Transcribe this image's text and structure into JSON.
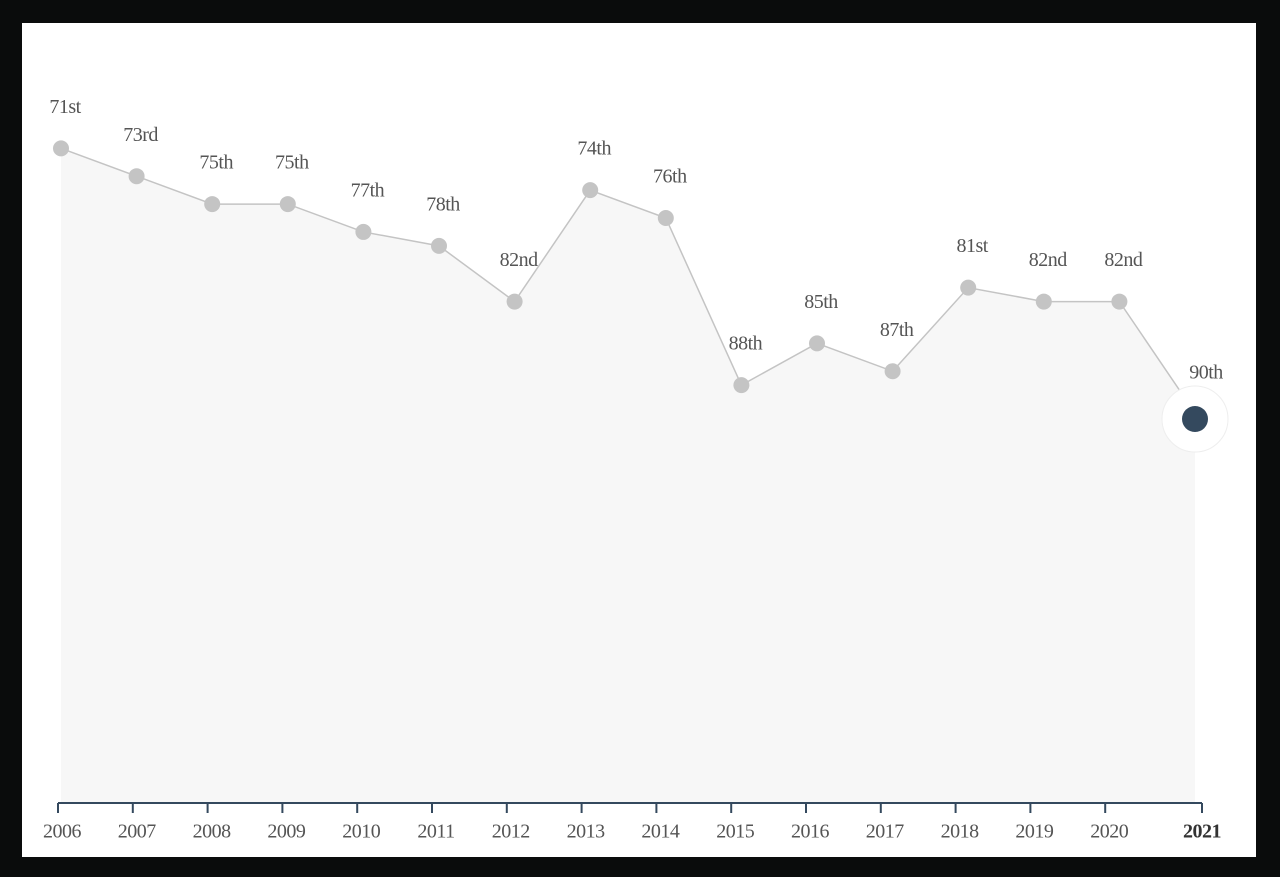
{
  "chart_data": {
    "type": "area",
    "categories": [
      "2006",
      "2007",
      "2008",
      "2009",
      "2010",
      "2011",
      "2012",
      "2013",
      "2014",
      "2015",
      "2016",
      "2017",
      "2018",
      "2019",
      "2020",
      "2021"
    ],
    "values": [
      71,
      73,
      75,
      75,
      77,
      78,
      82,
      74,
      76,
      88,
      85,
      87,
      81,
      82,
      82,
      90
    ],
    "value_labels": [
      "71st",
      "73rd",
      "75th",
      "75th",
      "77th",
      "78th",
      "82nd",
      "74th",
      "76th",
      "88th",
      "85th",
      "87th",
      "81st",
      "82nd",
      "82nd",
      "90th"
    ],
    "ylim": [
      118,
      62
    ],
    "color": "#c4c4c4",
    "highlight_color": "#34495e",
    "fill": "#f7f7f7"
  }
}
